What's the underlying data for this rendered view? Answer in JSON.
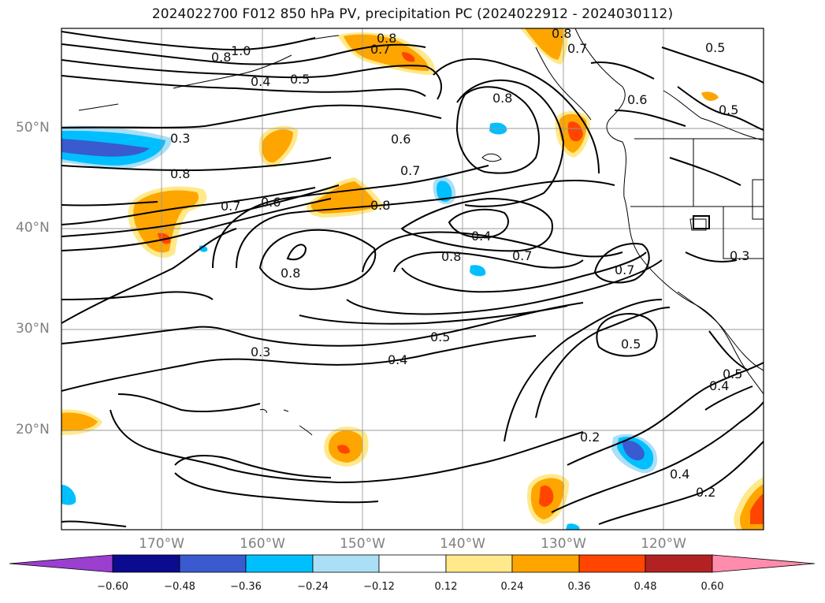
{
  "title": "2024022700 F012 850 hPa PV, precipitation PC (2024022912 - 2024030112)",
  "axes": {
    "lat_labels": [
      "50°N",
      "40°N",
      "30°N",
      "20°N"
    ],
    "lon_labels": [
      "170°W",
      "160°W",
      "150°W",
      "140°W",
      "130°W",
      "120°W"
    ]
  },
  "contour_labels": [
    "1.0",
    "0.8",
    "0.4",
    "0.5",
    "0.8",
    "0.7",
    "0.8",
    "0.7",
    "0.5",
    "0.6",
    "0.5",
    "0.3",
    "0.8",
    "0.7",
    "0.6",
    "0.8",
    "0.6",
    "0.7",
    "0.8",
    "0.4",
    "0.8",
    "0.7",
    "0.7",
    "0.3",
    "0.3",
    "0.5",
    "0.4",
    "0.2",
    "0.4",
    "0.2",
    "0.4",
    "0.5"
  ],
  "colorbar": {
    "ticks": [
      "−0.60",
      "−0.48",
      "−0.36",
      "−0.24",
      "−0.12",
      "0.12",
      "0.24",
      "0.36",
      "0.48",
      "0.60"
    ],
    "colors": {
      "under": "#9a3fd0",
      "c1": "#0b0b8f",
      "c2": "#3a5ad0",
      "c3": "#00bfff",
      "c4": "#abdff5",
      "c5": "#ffffff",
      "c6": "#ffe98a",
      "c7": "#ffa500",
      "c8": "#ff4500",
      "c9": "#b22222",
      "over": "#ff8cad"
    }
  }
}
